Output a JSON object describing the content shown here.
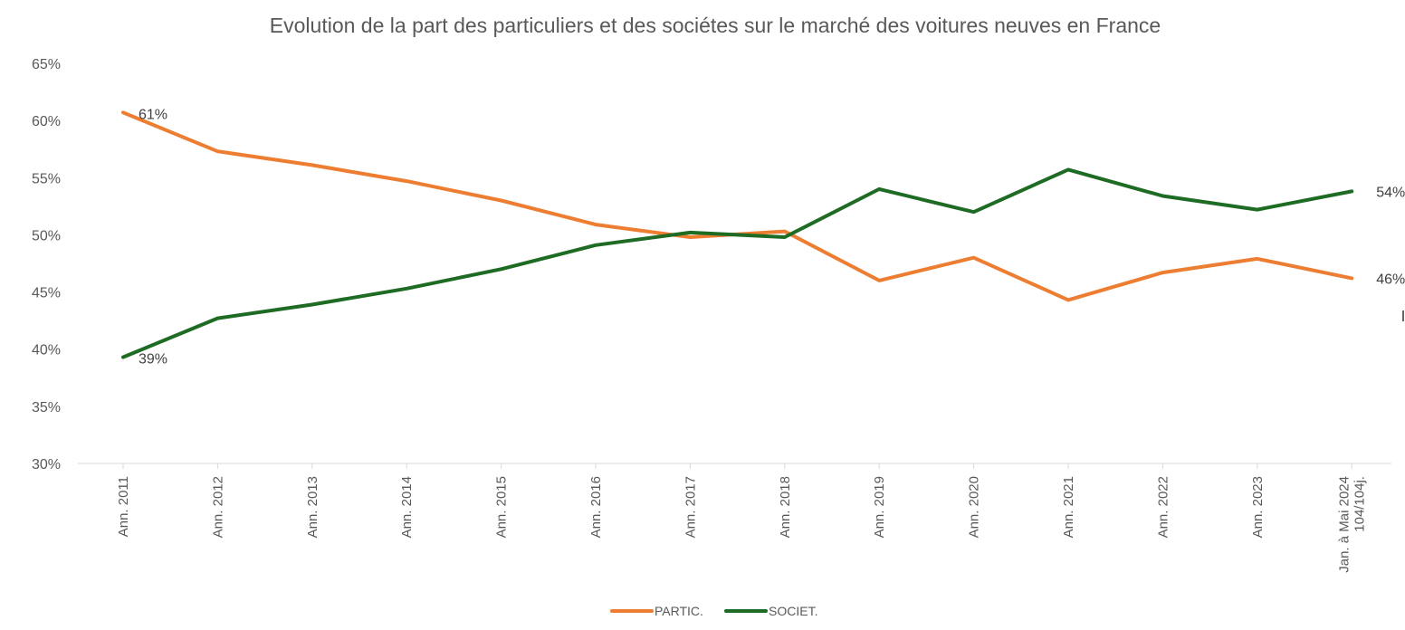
{
  "chart_data": {
    "type": "line",
    "title": "Evolution de la part des particuliers et des sociétes sur le marché des voitures neuves en France",
    "xlabel": "",
    "ylabel": "",
    "categories": [
      [
        "Ann. 2011"
      ],
      [
        "Ann. 2012"
      ],
      [
        "Ann. 2013"
      ],
      [
        "Ann. 2014"
      ],
      [
        "Ann. 2015"
      ],
      [
        "Ann. 2016"
      ],
      [
        "Ann. 2017"
      ],
      [
        "Ann. 2018"
      ],
      [
        "Ann. 2019"
      ],
      [
        "Ann. 2020"
      ],
      [
        "Ann. 2021"
      ],
      [
        "Ann. 2022"
      ],
      [
        "Ann. 2023"
      ],
      [
        "Jan. à Mai 2024",
        "104/104j."
      ]
    ],
    "ylim": [
      0.3,
      0.65
    ],
    "yticks": [
      0.3,
      0.35,
      0.4,
      0.45,
      0.5,
      0.55,
      0.6,
      0.65
    ],
    "ytick_labels": [
      "30%",
      "35%",
      "40%",
      "45%",
      "50%",
      "55%",
      "60%",
      "65%"
    ],
    "grid": false,
    "legend_position": "bottom",
    "series": [
      {
        "name": "PARTIC.",
        "color": "#ed7d31",
        "values": [
          0.607,
          0.573,
          0.561,
          0.547,
          0.53,
          0.509,
          0.498,
          0.503,
          0.46,
          0.48,
          0.443,
          0.467,
          0.479,
          0.462
        ],
        "data_labels": [
          {
            "index": 0,
            "text": "61%",
            "position": "right"
          },
          {
            "index": 13,
            "text": "46%",
            "position": "right"
          }
        ]
      },
      {
        "name": "SOCIET.",
        "color": "#1e6b24",
        "values": [
          0.393,
          0.427,
          0.439,
          0.453,
          0.47,
          0.491,
          0.502,
          0.498,
          0.54,
          0.52,
          0.557,
          0.534,
          0.522,
          0.538
        ],
        "data_labels": [
          {
            "index": 0,
            "text": "39%",
            "position": "below-right"
          },
          {
            "index": 13,
            "text": "54%",
            "position": "right"
          }
        ]
      }
    ]
  }
}
